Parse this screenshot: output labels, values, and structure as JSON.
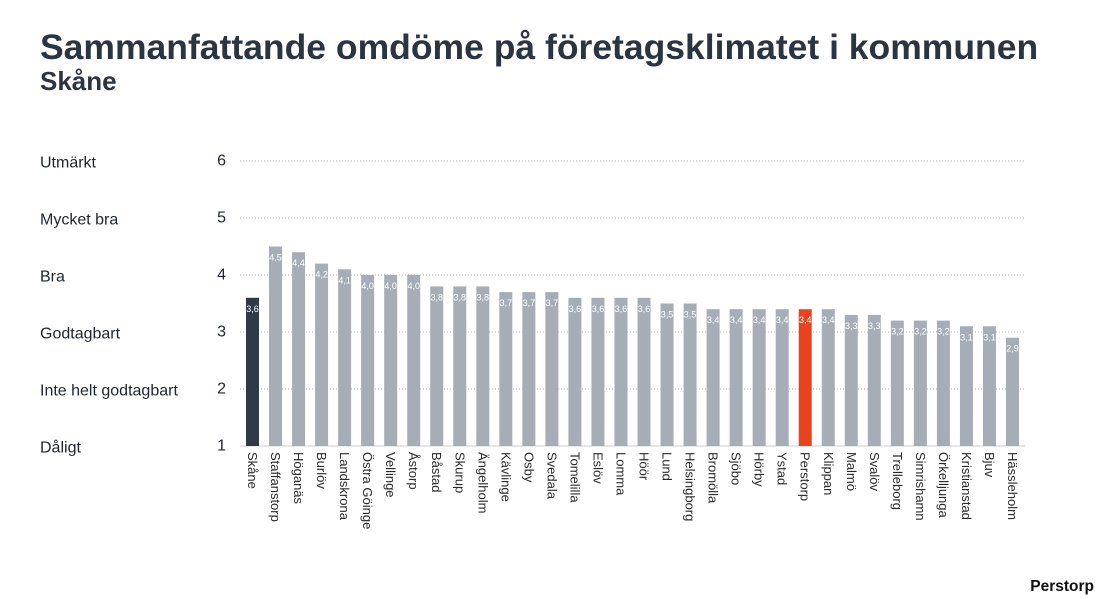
{
  "chart_data": {
    "type": "bar",
    "title": "Sammanfattande omdöme på företagsklimatet i kommunen",
    "subtitle": "Skåne",
    "categories": [
      "Skåne",
      "Staffanstorp",
      "Höganäs",
      "Burlöv",
      "Landskrona",
      "Östra Göinge",
      "Vellinge",
      "Åstorp",
      "Båstad",
      "Skurup",
      "Ängelholm",
      "Kävlinge",
      "Osby",
      "Svedala",
      "Tomelilla",
      "Eslöv",
      "Lomma",
      "Höör",
      "Lund",
      "Helsingborg",
      "Bromölla",
      "Sjöbo",
      "Hörby",
      "Ystad",
      "Perstorp",
      "Klippan",
      "Malmö",
      "Svalöv",
      "Trelleborg",
      "Simrishamn",
      "Örkelljunga",
      "Kristianstad",
      "Bjuv",
      "Hässleholm"
    ],
    "values": [
      3.6,
      4.5,
      4.4,
      4.2,
      4.1,
      4.0,
      4.0,
      4.0,
      3.8,
      3.8,
      3.8,
      3.7,
      3.7,
      3.7,
      3.6,
      3.6,
      3.6,
      3.6,
      3.5,
      3.5,
      3.4,
      3.4,
      3.4,
      3.4,
      3.4,
      3.4,
      3.3,
      3.3,
      3.2,
      3.2,
      3.2,
      3.1,
      3.1,
      2.9
    ],
    "value_labels": [
      "3,6",
      "4,5",
      "4,4",
      "4,2",
      "4,1",
      "4,0",
      "4,0",
      "4,0",
      "3,8",
      "3,8",
      "3,8",
      "3,7",
      "3,7",
      "3,7",
      "3,6",
      "3,6",
      "3,6",
      "3,6",
      "3,5",
      "3,5",
      "3,4",
      "3,4",
      "3,4",
      "3,4",
      "3,4",
      "3,4",
      "3,3",
      "3,3",
      "3,2",
      "3,2",
      "3,2",
      "3,1",
      "3,1",
      "2,9"
    ],
    "ylim": [
      1,
      6
    ],
    "yticks": [
      1,
      2,
      3,
      4,
      5,
      6
    ],
    "ytick_labels": [
      "1",
      "2",
      "3",
      "4",
      "5",
      "6"
    ],
    "y_scale_labels": [
      "Dåligt",
      "Inte helt godtagbart",
      "Godtagbart",
      "Bra",
      "Mycket bra",
      "Utmärkt"
    ],
    "grid": true,
    "colors": {
      "default": "#a6adb6",
      "Skåne": "#2f3a49",
      "Perstorp": "#e6431e"
    }
  },
  "brand": {
    "name": "Perstorp"
  }
}
